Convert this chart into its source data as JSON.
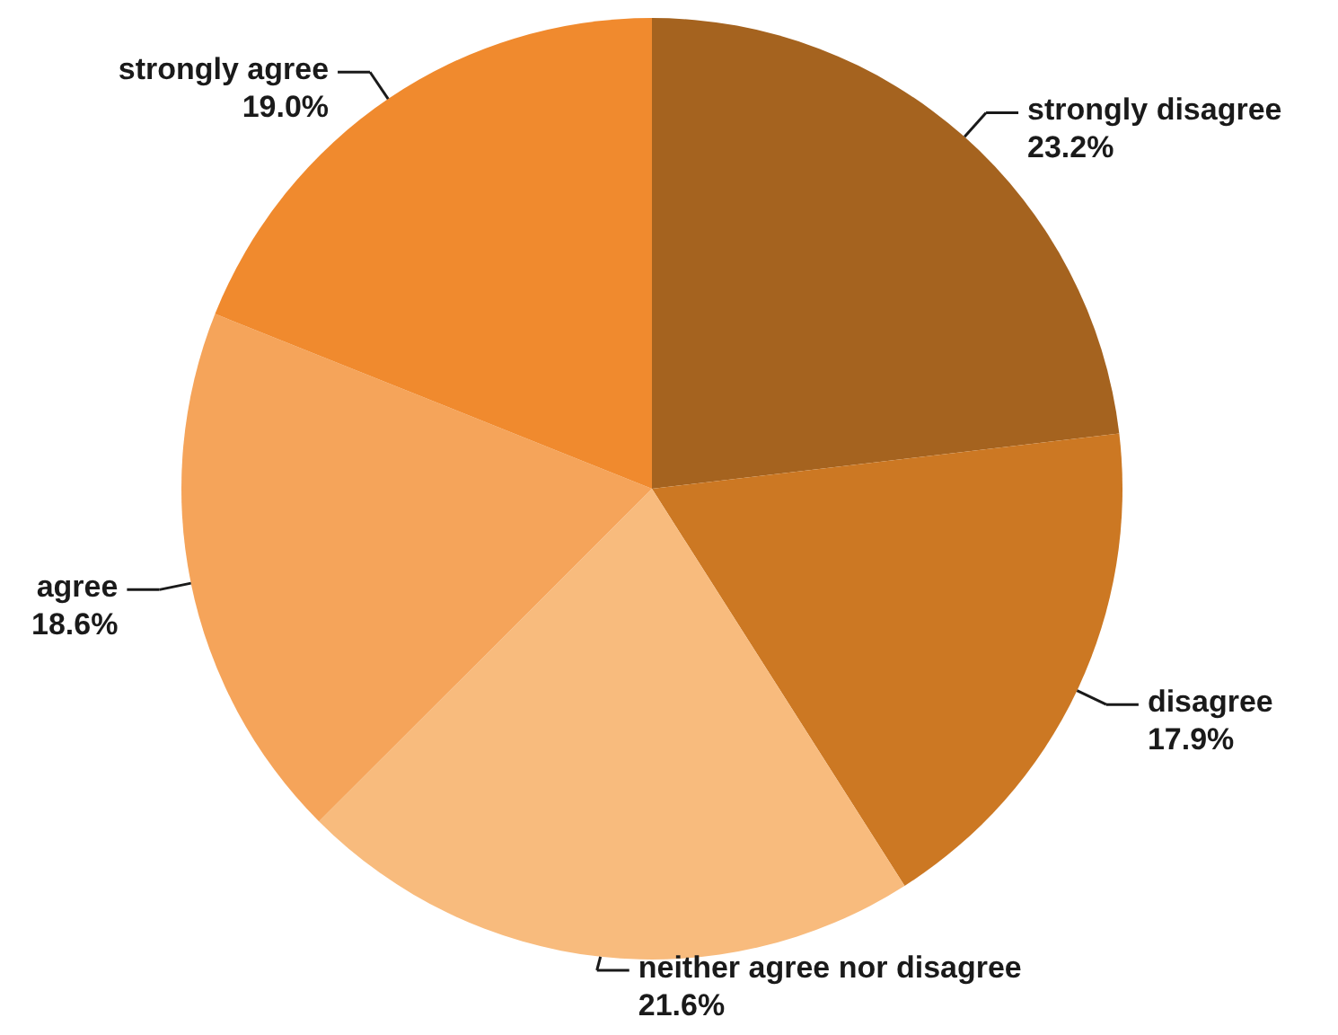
{
  "chart_data": {
    "type": "pie",
    "categories": [
      "strongly disagree",
      "disagree",
      "neither agree nor disagree",
      "agree",
      "strongly agree"
    ],
    "values": [
      23.2,
      17.9,
      21.6,
      18.6,
      19.0
    ],
    "value_labels": [
      "23.2%",
      "17.9%",
      "21.6%",
      "18.6%",
      "19.0%"
    ],
    "colors": [
      "#a5631f",
      "#cc7823",
      "#f8bb7d",
      "#f5a45a",
      "#f08a2e"
    ]
  }
}
